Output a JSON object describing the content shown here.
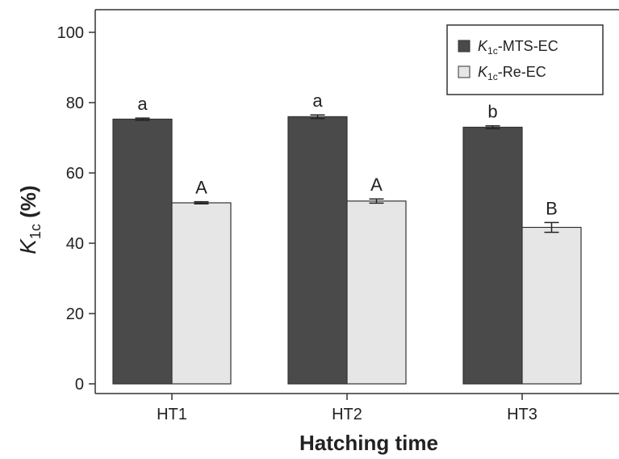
{
  "chart_data": {
    "type": "bar",
    "categories": [
      "HT1",
      "HT2",
      "HT3"
    ],
    "series": [
      {
        "name": "K1c-MTS-EC",
        "legend_main": "K",
        "legend_sub": "1c",
        "legend_rest": "-MTS-EC",
        "color": "#4a4a4a",
        "values": [
          75.3,
          76.0,
          73.0
        ],
        "errors": [
          0.3,
          0.5,
          0.4
        ],
        "sig": [
          "a",
          "a",
          "b"
        ]
      },
      {
        "name": "K1c-Re-EC",
        "legend_main": "K",
        "legend_sub": "1c",
        "legend_rest": "-Re-EC",
        "color": "#e6e6e6",
        "values": [
          51.5,
          52.0,
          44.5
        ],
        "errors": [
          0.3,
          0.6,
          1.4
        ],
        "sig": [
          "A",
          "A",
          "B"
        ]
      }
    ],
    "ylim": [
      0,
      100
    ],
    "yticks": [
      "0",
      "20",
      "40",
      "60",
      "80",
      "100"
    ],
    "xlabel": "Hatching time",
    "ylabel_main": "K",
    "ylabel_sub": "1c",
    "ylabel_rest": " (%)",
    "legend_position": "top-right",
    "grid": false
  }
}
